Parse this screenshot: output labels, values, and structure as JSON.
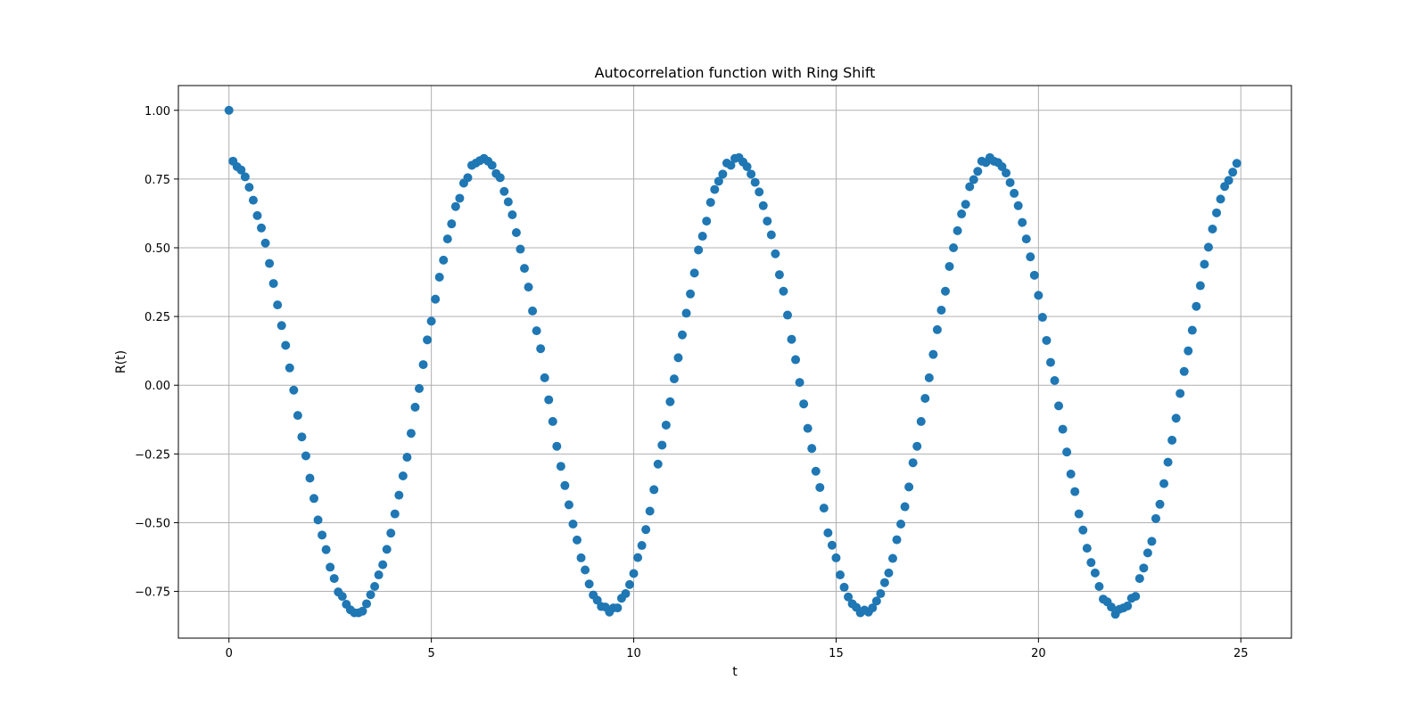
{
  "chart_data": {
    "type": "scatter",
    "title": "Autocorrelation function with Ring Shift",
    "xlabel": "t",
    "ylabel": "R(t)",
    "xlim": [
      -1.25,
      26.25
    ],
    "ylim": [
      -0.92,
      1.09
    ],
    "xticks": [
      0,
      5,
      10,
      15,
      20,
      25
    ],
    "xtick_labels": [
      "0",
      "5",
      "10",
      "15",
      "20",
      "25"
    ],
    "yticks": [
      1.0,
      0.75,
      0.5,
      0.25,
      0.0,
      -0.25,
      -0.5,
      -0.75
    ],
    "ytick_labels": [
      "1.00",
      "0.75",
      "0.50",
      "0.25",
      "0.00",
      "−0.25",
      "−0.50",
      "−0.75"
    ],
    "grid": true,
    "marker_color": "#1f77b4",
    "series": [
      {
        "x": [
          0,
          0.1,
          0.2,
          0.3,
          0.4,
          0.5,
          0.6,
          0.7,
          0.8,
          0.9,
          1.0,
          1.1,
          1.2,
          1.3,
          1.4,
          1.5,
          1.6,
          1.7,
          1.8,
          1.9,
          2.0,
          2.1,
          2.2,
          2.3,
          2.4,
          2.5,
          2.6,
          2.7,
          2.8,
          2.9,
          3.0,
          3.1,
          3.2,
          3.3,
          3.4,
          3.5,
          3.6,
          3.7,
          3.8,
          3.9,
          4.0,
          4.1,
          4.2,
          4.3,
          4.4,
          4.5,
          4.6,
          4.7,
          4.8,
          4.9,
          5.0,
          5.1,
          5.2,
          5.3,
          5.4,
          5.5,
          5.6,
          5.7,
          5.8,
          5.9,
          6.0,
          6.1,
          6.2,
          6.3,
          6.4,
          6.5,
          6.6,
          6.7,
          6.8,
          6.9,
          7.0,
          7.1,
          7.2,
          7.3,
          7.4,
          7.5,
          7.6,
          7.7,
          7.8,
          7.9,
          8.0,
          8.1,
          8.2,
          8.3,
          8.4,
          8.5,
          8.6,
          8.7,
          8.8,
          8.9,
          9.0,
          9.1,
          9.2,
          9.3,
          9.4,
          9.5,
          9.6,
          9.7,
          9.8,
          9.9,
          10.0,
          10.1,
          10.2,
          10.3,
          10.4,
          10.5,
          10.6,
          10.7,
          10.8,
          10.9,
          11.0,
          11.1,
          11.2,
          11.3,
          11.4,
          11.5,
          11.6,
          11.7,
          11.8,
          11.9,
          12.0,
          12.1,
          12.2,
          12.3,
          12.4,
          12.5,
          12.6,
          12.7,
          12.8,
          12.9,
          13.0,
          13.1,
          13.2,
          13.3,
          13.4,
          13.5,
          13.6,
          13.7,
          13.8,
          13.9,
          14.0,
          14.1,
          14.2,
          14.3,
          14.4,
          14.5,
          14.6,
          14.7,
          14.8,
          14.9,
          15.0,
          15.1,
          15.2,
          15.3,
          15.4,
          15.5,
          15.6,
          15.7,
          15.8,
          15.9,
          16.0,
          16.1,
          16.2,
          16.3,
          16.4,
          16.5,
          16.6,
          16.7,
          16.8,
          16.9,
          17.0,
          17.1,
          17.2,
          17.3,
          17.4,
          17.5,
          17.6,
          17.7,
          17.8,
          17.9,
          18.0,
          18.1,
          18.2,
          18.3,
          18.4,
          18.5,
          18.6,
          18.7,
          18.8,
          18.9,
          19.0,
          19.1,
          19.2,
          19.3,
          19.4,
          19.5,
          19.6,
          19.7,
          19.8,
          19.9,
          20.0,
          20.1,
          20.2,
          20.3,
          20.4,
          20.5,
          20.6,
          20.7,
          20.8,
          20.9,
          21.0,
          21.1,
          21.2,
          21.3,
          21.4,
          21.5,
          21.6,
          21.7,
          21.8,
          21.9,
          22.0,
          22.1,
          22.2,
          22.3,
          22.4,
          22.5,
          22.6,
          22.7,
          22.8,
          22.9,
          23.0,
          23.1,
          23.2,
          23.3,
          23.4,
          23.5,
          23.6,
          23.7,
          23.8,
          23.9,
          24.0,
          24.1,
          24.2,
          24.3,
          24.4,
          24.5,
          24.6,
          24.7,
          24.8,
          24.9
        ],
        "y": [
          1.0,
          0.815,
          0.795,
          0.783,
          0.758,
          0.72,
          0.673,
          0.617,
          0.572,
          0.517,
          0.443,
          0.37,
          0.292,
          0.217,
          0.145,
          0.063,
          -0.018,
          -0.11,
          -0.188,
          -0.257,
          -0.338,
          -0.412,
          -0.49,
          -0.545,
          -0.598,
          -0.662,
          -0.703,
          -0.752,
          -0.768,
          -0.797,
          -0.817,
          -0.828,
          -0.828,
          -0.822,
          -0.795,
          -0.762,
          -0.732,
          -0.69,
          -0.653,
          -0.597,
          -0.538,
          -0.468,
          -0.4,
          -0.33,
          -0.262,
          -0.175,
          -0.08,
          -0.012,
          0.075,
          0.165,
          0.233,
          0.313,
          0.393,
          0.455,
          0.532,
          0.587,
          0.65,
          0.68,
          0.735,
          0.755,
          0.8,
          0.808,
          0.817,
          0.825,
          0.815,
          0.8,
          0.77,
          0.755,
          0.705,
          0.667,
          0.62,
          0.555,
          0.495,
          0.425,
          0.357,
          0.27,
          0.198,
          0.133,
          0.027,
          -0.053,
          -0.132,
          -0.222,
          -0.295,
          -0.365,
          -0.435,
          -0.505,
          -0.563,
          -0.628,
          -0.672,
          -0.723,
          -0.763,
          -0.782,
          -0.805,
          -0.807,
          -0.825,
          -0.81,
          -0.81,
          -0.775,
          -0.758,
          -0.725,
          -0.685,
          -0.627,
          -0.583,
          -0.525,
          -0.458,
          -0.38,
          -0.287,
          -0.218,
          -0.145,
          -0.06,
          0.023,
          0.1,
          0.183,
          0.262,
          0.332,
          0.408,
          0.492,
          0.542,
          0.597,
          0.665,
          0.712,
          0.742,
          0.768,
          0.808,
          0.8,
          0.825,
          0.828,
          0.812,
          0.795,
          0.768,
          0.738,
          0.703,
          0.653,
          0.597,
          0.547,
          0.478,
          0.402,
          0.342,
          0.255,
          0.167,
          0.093,
          0.01,
          -0.068,
          -0.157,
          -0.23,
          -0.313,
          -0.372,
          -0.447,
          -0.537,
          -0.582,
          -0.628,
          -0.69,
          -0.735,
          -0.77,
          -0.795,
          -0.808,
          -0.828,
          -0.818,
          -0.825,
          -0.81,
          -0.785,
          -0.758,
          -0.718,
          -0.683,
          -0.63,
          -0.562,
          -0.505,
          -0.442,
          -0.37,
          -0.282,
          -0.222,
          -0.132,
          -0.048,
          0.027,
          0.112,
          0.202,
          0.273,
          0.342,
          0.432,
          0.5,
          0.562,
          0.623,
          0.658,
          0.722,
          0.748,
          0.778,
          0.815,
          0.81,
          0.828,
          0.815,
          0.81,
          0.795,
          0.772,
          0.737,
          0.698,
          0.653,
          0.592,
          0.532,
          0.467,
          0.4,
          0.327,
          0.247,
          0.163,
          0.083,
          0.017,
          -0.075,
          -0.16,
          -0.243,
          -0.323,
          -0.387,
          -0.468,
          -0.527,
          -0.593,
          -0.645,
          -0.683,
          -0.732,
          -0.778,
          -0.788,
          -0.807,
          -0.833,
          -0.815,
          -0.81,
          -0.803,
          -0.775,
          -0.768,
          -0.703,
          -0.665,
          -0.61,
          -0.568,
          -0.485,
          -0.433,
          -0.358,
          -0.28,
          -0.2,
          -0.12,
          -0.03,
          0.05,
          0.125,
          0.2,
          0.287,
          0.362,
          0.44,
          0.502,
          0.568,
          0.627,
          0.677,
          0.723,
          0.745,
          0.775,
          0.807
        ]
      }
    ]
  }
}
